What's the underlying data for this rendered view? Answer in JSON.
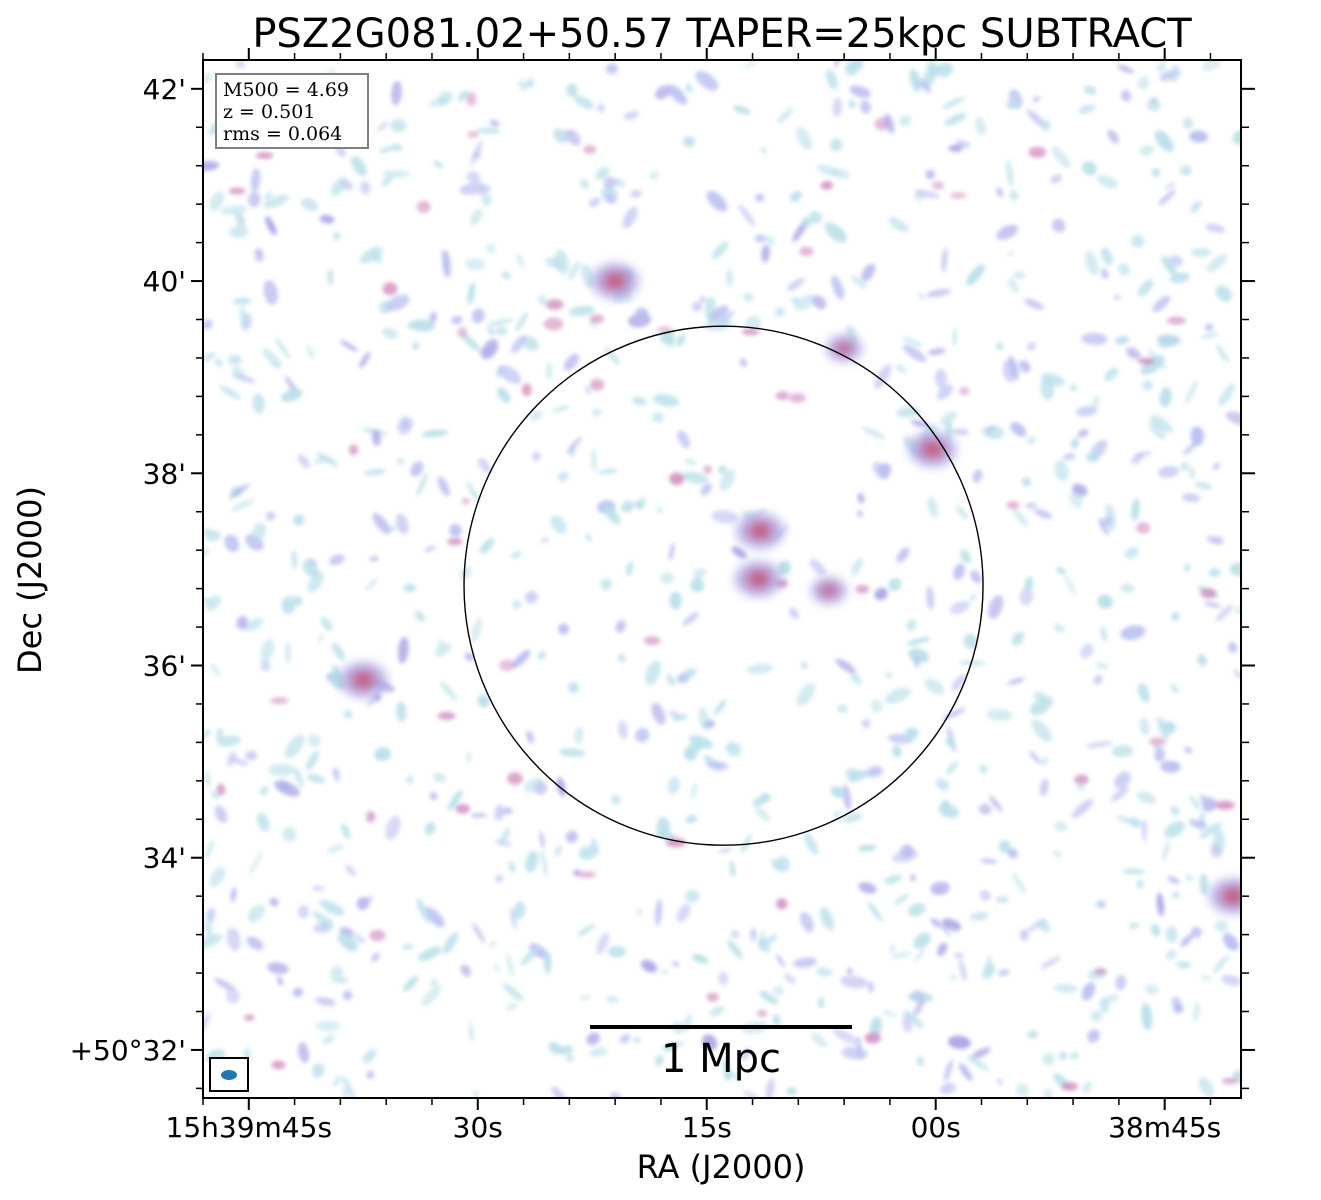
{
  "chart_data": {
    "type": "heatmap",
    "title": "PSZ2G081.02+50.57 TAPER=25kpc SUBTRACT",
    "xlabel": "RA (J2000)",
    "ylabel": "Dec (J2000)",
    "x_ticks": [
      {
        "label": "15h39m45s",
        "ra_s": 45
      },
      {
        "label": "30s",
        "ra_s": 30
      },
      {
        "label": "15s",
        "ra_s": 15
      },
      {
        "label": "00s",
        "ra_s": 0
      },
      {
        "label": "38m45s",
        "ra_s": -15
      }
    ],
    "y_ticks": [
      {
        "label": "+50°32'",
        "dec_arcmin": 32
      },
      {
        "label": "34'",
        "dec_arcmin": 34
      },
      {
        "label": "36'",
        "dec_arcmin": 36
      },
      {
        "label": "38'",
        "dec_arcmin": 38
      },
      {
        "label": "40'",
        "dec_arcmin": 40
      },
      {
        "label": "42'",
        "dec_arcmin": 42
      }
    ],
    "ra_range_s": [
      48.0,
      -20.0
    ],
    "dec_range_arcmin": [
      31.5,
      42.3
    ],
    "info_box": {
      "lines": [
        "M500 = 4.69",
        "z = 0.501",
        "rms = 0.064"
      ],
      "placement": "top-left"
    },
    "circle": {
      "center_ra_s": 13.9,
      "center_dec_arcmin": 36.83,
      "radius_arcmin": 2.7
    },
    "scale_bar": {
      "label": "1 Mpc",
      "placement": "bottom-center"
    },
    "beam": {
      "placement": "bottom-left"
    },
    "sources": [
      {
        "ra_s": 11.5,
        "dec_arcmin": 37.4,
        "level": "high"
      },
      {
        "ra_s": 11.6,
        "dec_arcmin": 36.9,
        "level": "high"
      },
      {
        "ra_s": 7.0,
        "dec_arcmin": 36.78,
        "level": "medium"
      },
      {
        "ra_s": 0.2,
        "dec_arcmin": 38.25,
        "level": "high"
      },
      {
        "ra_s": 37.5,
        "dec_arcmin": 35.85,
        "level": "high"
      },
      {
        "ra_s": 21.0,
        "dec_arcmin": 40.0,
        "level": "high"
      },
      {
        "ra_s": -19.5,
        "dec_arcmin": 33.6,
        "level": "high"
      },
      {
        "ra_s": 6.0,
        "dec_arcmin": 39.3,
        "level": "medium"
      }
    ],
    "colormap": "light-blue to purple to red (faint noise field)",
    "colors": {
      "low": "#b9dfe9",
      "mid": "#a9a6e6",
      "high": "#c0506a",
      "frame": "#000000",
      "info_border": "#808080",
      "beam": "#1f77b4"
    }
  }
}
